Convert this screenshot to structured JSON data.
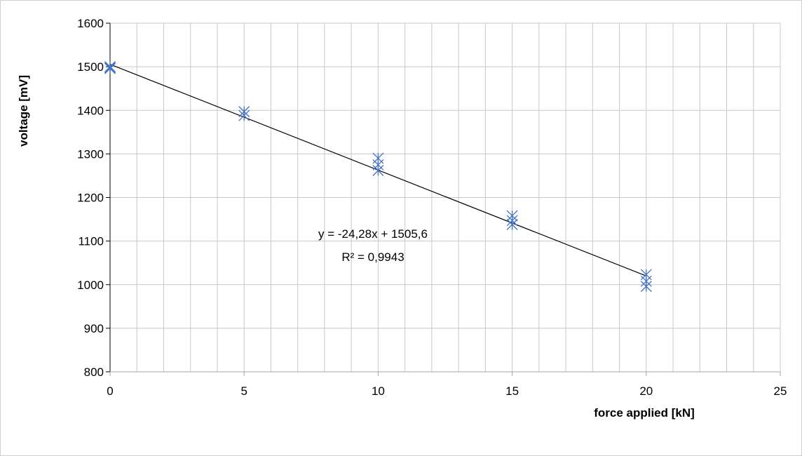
{
  "chart_data": {
    "type": "scatter",
    "title": "",
    "xlabel": "force applied [kN]",
    "ylabel": "voltage [mV]",
    "xlim": [
      0,
      25
    ],
    "ylim": [
      800,
      1600
    ],
    "x_ticks": [
      0,
      5,
      10,
      15,
      20,
      25
    ],
    "y_ticks": [
      800,
      900,
      1000,
      1100,
      1200,
      1300,
      1400,
      1500,
      1600
    ],
    "x_minor_step": 1,
    "grid": true,
    "legend": "none",
    "series": [
      {
        "marker": "asterisk-x",
        "color": "#4472C4",
        "points": [
          {
            "x": 0,
            "y": 1500
          },
          {
            "x": 0,
            "y": 1498
          },
          {
            "x": 0,
            "y": 1496
          },
          {
            "x": 5,
            "y": 1397
          },
          {
            "x": 5,
            "y": 1388
          },
          {
            "x": 10,
            "y": 1290
          },
          {
            "x": 10,
            "y": 1275
          },
          {
            "x": 10,
            "y": 1262
          },
          {
            "x": 15,
            "y": 1158
          },
          {
            "x": 15,
            "y": 1147
          },
          {
            "x": 15,
            "y": 1138
          },
          {
            "x": 20,
            "y": 1023
          },
          {
            "x": 20,
            "y": 1008
          },
          {
            "x": 20,
            "y": 996
          }
        ]
      }
    ],
    "trendline": {
      "type": "linear",
      "slope": -24.28,
      "intercept": 1505.6,
      "x_range": [
        0,
        20
      ],
      "color": "#000000",
      "equation_text": "y = -24,28x + 1505,6",
      "r2_text": "R² = 0,9943"
    }
  }
}
